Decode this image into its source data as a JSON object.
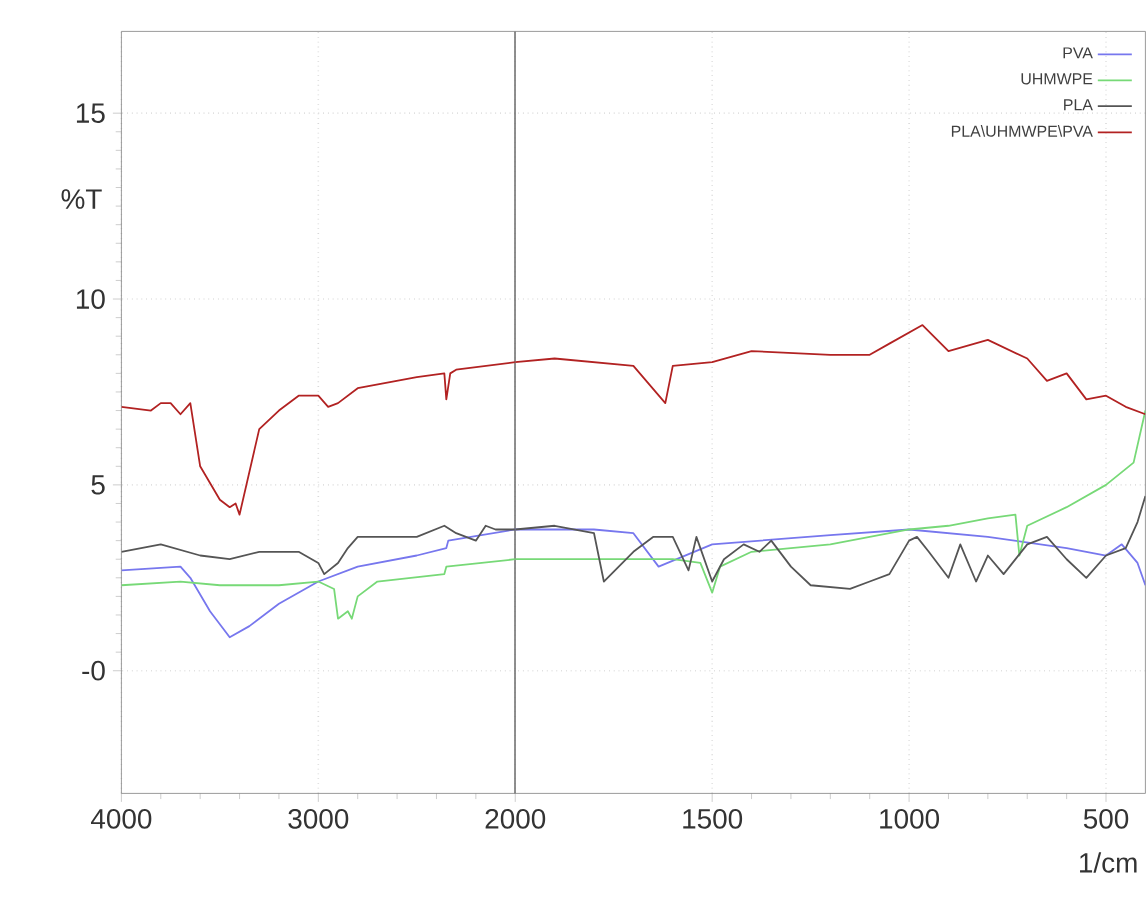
{
  "chart_data": [
    {
      "type": "line",
      "ylabel": "%T",
      "xlim": [
        4000,
        2000
      ],
      "ylim": [
        -3.3,
        17.2
      ],
      "xticks": [
        4000,
        3000,
        2000
      ],
      "yticks": [
        {
          "value": 0,
          "label": "-0"
        },
        5,
        10,
        15
      ],
      "grid": true,
      "marker": "none",
      "line_style": "solid",
      "ref_lines": [
        {
          "axis": "x",
          "value": 2000,
          "color": "#555555"
        }
      ],
      "series": [
        {
          "color": "#7777ee",
          "x": [
            4000,
            3700,
            3650,
            3550,
            3450,
            3350,
            3200,
            3000,
            2800,
            2500,
            2350,
            2340,
            2000
          ],
          "values": [
            2.7,
            2.8,
            2.5,
            1.6,
            0.9,
            1.2,
            1.8,
            2.4,
            2.8,
            3.1,
            3.3,
            3.5,
            3.8
          ]
        },
        {
          "color": "#77d977",
          "x": [
            4000,
            3700,
            3500,
            3200,
            3000,
            2920,
            2900,
            2850,
            2830,
            2800,
            2700,
            2360,
            2350,
            2000
          ],
          "values": [
            2.3,
            2.4,
            2.3,
            2.3,
            2.4,
            2.2,
            1.4,
            1.6,
            1.4,
            2.0,
            2.4,
            2.6,
            2.8,
            3.0
          ]
        },
        {
          "color": "#555555",
          "x": [
            4000,
            3800,
            3600,
            3450,
            3300,
            3100,
            3000,
            2970,
            2900,
            2850,
            2800,
            2500,
            2360,
            2300,
            2200,
            2150,
            2100,
            2000
          ],
          "values": [
            3.2,
            3.4,
            3.1,
            3.0,
            3.2,
            3.2,
            2.9,
            2.6,
            2.9,
            3.3,
            3.6,
            3.6,
            3.9,
            3.7,
            3.5,
            3.9,
            3.8,
            3.8
          ]
        },
        {
          "color": "#b22222",
          "x": [
            4000,
            3850,
            3800,
            3750,
            3700,
            3650,
            3600,
            3500,
            3450,
            3420,
            3400,
            3300,
            3200,
            3100,
            3000,
            2950,
            2900,
            2800,
            2500,
            2360,
            2350,
            2330,
            2300,
            2000
          ],
          "values": [
            7.1,
            7.0,
            7.2,
            7.2,
            6.9,
            7.2,
            5.5,
            4.6,
            4.4,
            4.5,
            4.2,
            6.5,
            7.0,
            7.4,
            7.4,
            7.1,
            7.2,
            7.6,
            7.9,
            8.0,
            7.3,
            8.0,
            8.1,
            8.3
          ]
        }
      ]
    },
    {
      "type": "line",
      "xlabel": "1/cm",
      "xlim": [
        2000,
        400
      ],
      "ylim": [
        -3.3,
        17.2
      ],
      "xticks": [
        1500,
        1000,
        500
      ],
      "yticks": [
        0,
        5,
        10,
        15
      ],
      "tick_labels": "x",
      "grid": true,
      "legend": "top right",
      "marker": "none",
      "line_style": "solid",
      "series": [
        {
          "name": "PVA",
          "color": "#7777ee",
          "x": [
            2000,
            1800,
            1700,
            1636,
            1500,
            1200,
            1000,
            800,
            600,
            500,
            460,
            420,
            400
          ],
          "values": [
            3.8,
            3.8,
            3.7,
            2.8,
            3.4,
            3.65,
            3.8,
            3.6,
            3.3,
            3.1,
            3.4,
            2.9,
            2.3
          ]
        },
        {
          "name": "UHMWPE",
          "color": "#77d977",
          "x": [
            2000,
            1800,
            1600,
            1530,
            1500,
            1480,
            1400,
            1200,
            1000,
            900,
            800,
            730,
            720,
            700,
            600,
            500,
            430,
            400
          ],
          "values": [
            3.0,
            3.0,
            3.0,
            2.9,
            2.1,
            2.8,
            3.2,
            3.4,
            3.8,
            3.9,
            4.1,
            4.2,
            3.1,
            3.9,
            4.4,
            5.0,
            5.6,
            7.0
          ]
        },
        {
          "name": "PLA",
          "color": "#555555",
          "x": [
            2000,
            1900,
            1800,
            1775,
            1700,
            1650,
            1600,
            1560,
            1540,
            1500,
            1470,
            1420,
            1380,
            1350,
            1300,
            1250,
            1150,
            1100,
            1050,
            1000,
            980,
            950,
            900,
            870,
            830,
            800,
            760,
            700,
            650,
            600,
            550,
            500,
            450,
            420,
            400
          ],
          "values": [
            3.8,
            3.9,
            3.7,
            2.4,
            3.2,
            3.6,
            3.6,
            2.7,
            3.6,
            2.4,
            3.0,
            3.4,
            3.2,
            3.5,
            2.8,
            2.3,
            2.2,
            2.4,
            2.6,
            3.5,
            3.6,
            3.2,
            2.5,
            3.4,
            2.4,
            3.1,
            2.6,
            3.4,
            3.6,
            3.0,
            2.5,
            3.1,
            3.3,
            4.0,
            4.7
          ]
        },
        {
          "name": "PLA\\UHMWPE\\PVA",
          "color": "#b22222",
          "x": [
            2000,
            1900,
            1700,
            1619,
            1600,
            1500,
            1400,
            1200,
            1100,
            1050,
            966,
            900,
            800,
            700,
            650,
            600,
            550,
            500,
            450,
            400
          ],
          "values": [
            8.3,
            8.4,
            8.2,
            7.2,
            8.2,
            8.3,
            8.6,
            8.5,
            8.5,
            8.8,
            9.3,
            8.6,
            8.9,
            8.4,
            7.8,
            8.0,
            7.3,
            7.4,
            7.1,
            6.9
          ]
        }
      ]
    }
  ]
}
